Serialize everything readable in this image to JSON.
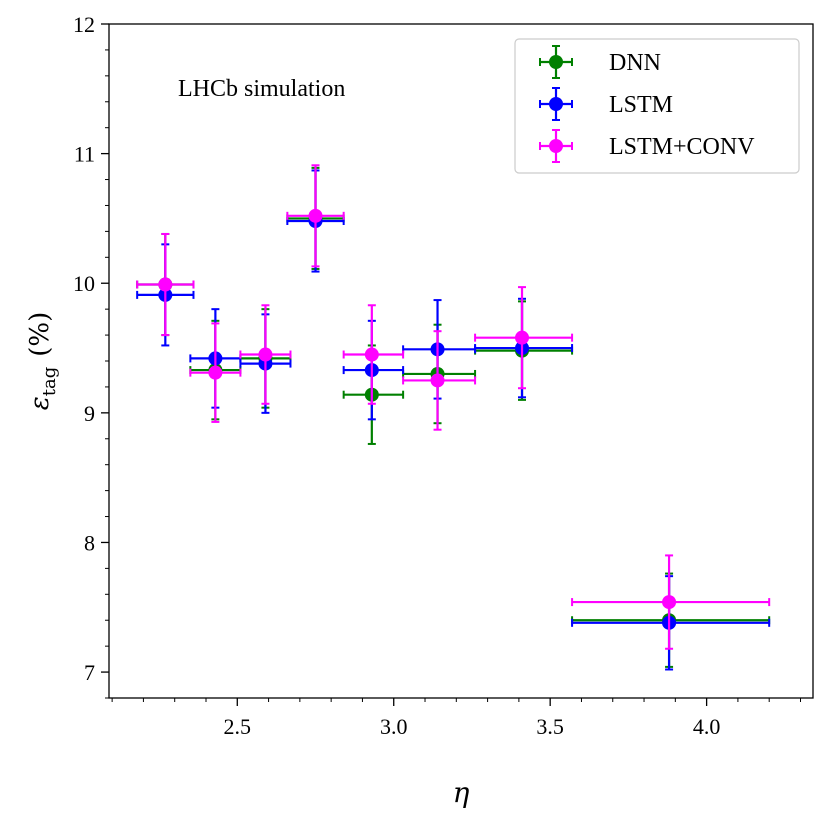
{
  "chart_data": {
    "type": "scatter",
    "title": "",
    "annotation": "LHCb simulation",
    "xlabel": "η",
    "ylabel_main": "ε",
    "ylabel_sub": "tag",
    "ylabel_unit": "(%)",
    "xlim": [
      2.09,
      4.34
    ],
    "ylim": [
      6.8,
      12.0
    ],
    "xticks": [
      2.5,
      3.0,
      3.5,
      4.0
    ],
    "xtick_labels": [
      "2.5",
      "3.0",
      "3.5",
      "4.0"
    ],
    "yticks": [
      7,
      8,
      9,
      10,
      11,
      12
    ],
    "ytick_labels": [
      "7",
      "8",
      "9",
      "10",
      "11",
      "12"
    ],
    "x_minor_step": 0.1,
    "y_minor_step": 0.2,
    "grid": false,
    "legend_position": "top-right",
    "series": [
      {
        "name": "DNN",
        "color": "#008000",
        "points": [
          {
            "x": 2.27,
            "xlo": 2.18,
            "xhi": 2.36,
            "y": 9.99,
            "yerr": 0.39
          },
          {
            "x": 2.43,
            "xlo": 2.35,
            "xhi": 2.51,
            "y": 9.33,
            "yerr": 0.38
          },
          {
            "x": 2.59,
            "xlo": 2.51,
            "xhi": 2.67,
            "y": 9.42,
            "yerr": 0.38
          },
          {
            "x": 2.75,
            "xlo": 2.66,
            "xhi": 2.84,
            "y": 10.5,
            "yerr": 0.39
          },
          {
            "x": 2.93,
            "xlo": 2.84,
            "xhi": 3.03,
            "y": 9.14,
            "yerr": 0.38
          },
          {
            "x": 3.14,
            "xlo": 3.03,
            "xhi": 3.26,
            "y": 9.3,
            "yerr": 0.38
          },
          {
            "x": 3.41,
            "xlo": 3.26,
            "xhi": 3.57,
            "y": 9.48,
            "yerr": 0.38
          },
          {
            "x": 3.88,
            "xlo": 3.57,
            "xhi": 4.2,
            "y": 7.4,
            "yerr": 0.36
          }
        ]
      },
      {
        "name": "LSTM",
        "color": "#0000ff",
        "points": [
          {
            "x": 2.27,
            "xlo": 2.18,
            "xhi": 2.36,
            "y": 9.91,
            "yerr": 0.39
          },
          {
            "x": 2.43,
            "xlo": 2.35,
            "xhi": 2.51,
            "y": 9.42,
            "yerr": 0.38
          },
          {
            "x": 2.59,
            "xlo": 2.51,
            "xhi": 2.67,
            "y": 9.38,
            "yerr": 0.38
          },
          {
            "x": 2.75,
            "xlo": 2.66,
            "xhi": 2.84,
            "y": 10.48,
            "yerr": 0.39
          },
          {
            "x": 2.93,
            "xlo": 2.84,
            "xhi": 3.03,
            "y": 9.33,
            "yerr": 0.38
          },
          {
            "x": 3.14,
            "xlo": 3.03,
            "xhi": 3.26,
            "y": 9.49,
            "yerr": 0.38
          },
          {
            "x": 3.41,
            "xlo": 3.26,
            "xhi": 3.57,
            "y": 9.5,
            "yerr": 0.38
          },
          {
            "x": 3.88,
            "xlo": 3.57,
            "xhi": 4.2,
            "y": 7.38,
            "yerr": 0.36
          }
        ]
      },
      {
        "name": "LSTM+CONV",
        "color": "#ff00ff",
        "points": [
          {
            "x": 2.27,
            "xlo": 2.18,
            "xhi": 2.36,
            "y": 9.99,
            "yerr": 0.39
          },
          {
            "x": 2.43,
            "xlo": 2.35,
            "xhi": 2.51,
            "y": 9.31,
            "yerr": 0.38
          },
          {
            "x": 2.59,
            "xlo": 2.51,
            "xhi": 2.67,
            "y": 9.45,
            "yerr": 0.38
          },
          {
            "x": 2.75,
            "xlo": 2.66,
            "xhi": 2.84,
            "y": 10.52,
            "yerr": 0.39
          },
          {
            "x": 2.93,
            "xlo": 2.84,
            "xhi": 3.03,
            "y": 9.45,
            "yerr": 0.38
          },
          {
            "x": 3.14,
            "xlo": 3.03,
            "xhi": 3.26,
            "y": 9.25,
            "yerr": 0.38
          },
          {
            "x": 3.41,
            "xlo": 3.26,
            "xhi": 3.57,
            "y": 9.58,
            "yerr": 0.39
          },
          {
            "x": 3.88,
            "xlo": 3.57,
            "xhi": 4.2,
            "y": 7.54,
            "yerr": 0.36
          }
        ]
      }
    ]
  }
}
